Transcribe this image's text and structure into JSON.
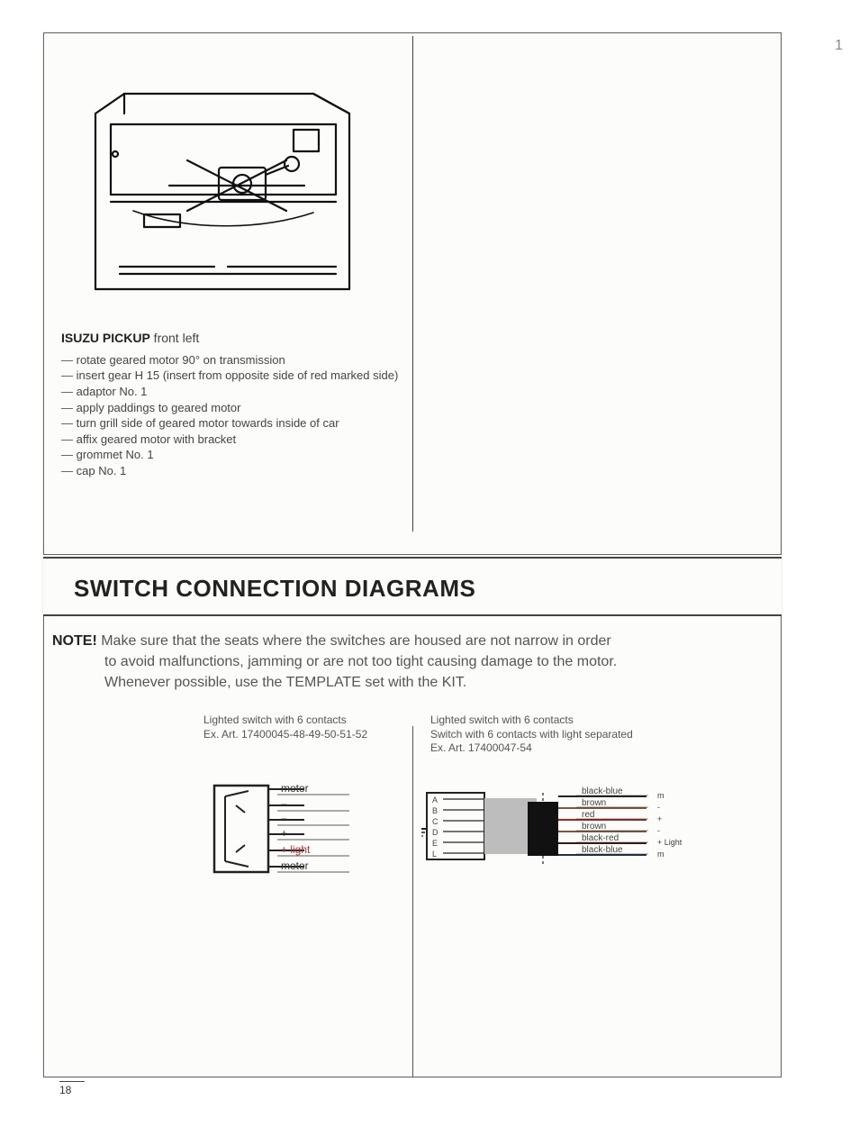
{
  "page_number": "18",
  "edge_mark": "1",
  "top": {
    "title_bold": "ISUZU PICKUP",
    "title_rest": " front left",
    "bullets": [
      "rotate geared motor 90° on transmission",
      "insert gear H 15 (insert from opposite side of red marked side)",
      "adaptor No. 1",
      "apply paddings to geared motor",
      "turn grill side of geared motor towards inside of car",
      "affix geared motor with bracket",
      "grommet No. 1",
      "cap No. 1"
    ]
  },
  "section_title": "SWITCH CONNECTION DIAGRAMS",
  "note": {
    "label": "NOTE!",
    "line1": " Make sure that the seats where the switches are housed are not narrow in order",
    "line2": "to avoid malfunctions, jamming or are not too tight causing damage to the motor.",
    "line3": "Whenever possible, use the TEMPLATE set with the KIT."
  },
  "diagram1": {
    "caption_l1": "Lighted switch with 6 contacts",
    "caption_l2": "Ex. Art. 17400045-48-49-50-51-52",
    "labels": {
      "motor_top": "motor",
      "minus1": "−",
      "minus2": "−",
      "plus": "+",
      "plus_light": "+ light",
      "motor_bottom": "motor"
    },
    "colors": {
      "stroke": "#222222",
      "text": "#333333",
      "light_text": "#b03030"
    }
  },
  "diagram2": {
    "caption_l1": "Lighted switch with 6 contacts",
    "caption_l2": "Switch with 6 contacts with light separated",
    "caption_l3": "Ex. Art. 17400047-54",
    "left_labels": [
      "A",
      "B",
      "C",
      "D",
      "E",
      "L"
    ],
    "wires": [
      {
        "label": "black-blue",
        "code": "m",
        "color": "#222222"
      },
      {
        "label": "brown",
        "code": "-",
        "color": "#7a5a3a"
      },
      {
        "label": "red",
        "code": "+",
        "color": "#b02020"
      },
      {
        "label": "brown",
        "code": "-",
        "color": "#7a5a3a"
      },
      {
        "label": "black-red",
        "code": "+ Light",
        "color": "#3a1818"
      },
      {
        "label": "black-blue",
        "code": "m",
        "color": "#223048"
      }
    ],
    "colors": {
      "stroke": "#222222",
      "block": "#111111",
      "grey": "#bdbdbd",
      "text": "#444444"
    }
  }
}
